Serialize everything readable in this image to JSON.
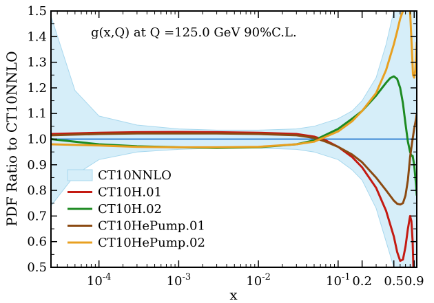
{
  "chart_data": {
    "type": "line",
    "annotation": "g(x,Q) at Q =125.0 GeV 90%C.L.",
    "xlabel": "x",
    "ylabel": "PDF Ratio to CT10NNLO",
    "x_scale": "log",
    "xlim": [
      2.5e-05,
      0.97
    ],
    "ylim": [
      0.5,
      1.5
    ],
    "y_ticks": [
      "0.5",
      "0.6",
      "0.7",
      "0.8",
      "0.9",
      "1.0",
      "1.1",
      "1.2",
      "1.3",
      "1.4",
      "1.5"
    ],
    "x_ticks": [
      {
        "value": 0.0001,
        "label": "10",
        "exp": "-4"
      },
      {
        "value": 0.001,
        "label": "10",
        "exp": "-3"
      },
      {
        "value": 0.01,
        "label": "10",
        "exp": "-2"
      },
      {
        "value": 0.1,
        "label": "10",
        "exp": "-1"
      },
      {
        "value": 0.2,
        "label": "0.2",
        "exp": ""
      },
      {
        "value": 0.5,
        "label": "0.5",
        "exp": ""
      },
      {
        "value": 0.9,
        "label": "0.9",
        "exp": ""
      }
    ],
    "grid": false,
    "legend_position": "bottom-left",
    "colors": {
      "band_fill": "#d6eef9",
      "band_edge": "#a8d8ee",
      "reference_line": "#3a86d4"
    },
    "band": {
      "name": "CT10NNLO",
      "x": [
        2.5e-05,
        5e-05,
        0.0001,
        0.0003,
        0.001,
        0.003,
        0.01,
        0.03,
        0.05,
        0.1,
        0.15,
        0.2,
        0.3,
        0.4,
        0.5,
        0.6,
        0.7,
        0.8,
        0.9,
        0.97
      ],
      "upper": [
        1.48,
        1.19,
        1.09,
        1.055,
        1.04,
        1.035,
        1.035,
        1.04,
        1.05,
        1.08,
        1.11,
        1.15,
        1.24,
        1.37,
        1.5,
        1.5,
        1.5,
        1.5,
        1.5,
        1.5
      ],
      "lower": [
        0.74,
        0.86,
        0.92,
        0.95,
        0.96,
        0.965,
        0.965,
        0.96,
        0.95,
        0.92,
        0.88,
        0.84,
        0.73,
        0.6,
        0.5,
        0.5,
        0.5,
        0.5,
        0.5,
        0.5
      ]
    },
    "reference": {
      "y": 1.0
    },
    "series": [
      {
        "name": "CT10H.01",
        "color": "#c41a12",
        "x": [
          2.5e-05,
          0.0001,
          0.0003,
          0.001,
          0.003,
          0.01,
          0.03,
          0.05,
          0.07,
          0.1,
          0.15,
          0.2,
          0.3,
          0.4,
          0.5,
          0.55,
          0.6,
          0.65,
          0.7,
          0.75,
          0.8,
          0.83,
          0.86,
          0.88
        ],
        "values": [
          1.02,
          1.025,
          1.027,
          1.028,
          1.027,
          1.025,
          1.02,
          1.01,
          0.995,
          0.97,
          0.93,
          0.89,
          0.81,
          0.72,
          0.62,
          0.56,
          0.525,
          0.53,
          0.58,
          0.65,
          0.7,
          0.68,
          0.6,
          0.5
        ]
      },
      {
        "name": "CT10H.02",
        "color": "#1d8a22",
        "x": [
          2.5e-05,
          0.0001,
          0.0003,
          0.001,
          0.003,
          0.01,
          0.03,
          0.05,
          0.1,
          0.15,
          0.2,
          0.3,
          0.4,
          0.45,
          0.5,
          0.55,
          0.6,
          0.65,
          0.7,
          0.75,
          0.8,
          0.83,
          0.86,
          0.9,
          0.95,
          0.97
        ],
        "values": [
          1.0,
          0.98,
          0.972,
          0.968,
          0.966,
          0.968,
          0.98,
          0.995,
          1.04,
          1.08,
          1.11,
          1.17,
          1.22,
          1.238,
          1.245,
          1.235,
          1.2,
          1.14,
          1.06,
          0.99,
          0.95,
          0.935,
          0.935,
          0.9,
          0.82,
          0.78
        ]
      },
      {
        "name": "CT10HePump.01",
        "color": "#8b4a12",
        "x": [
          2.5e-05,
          0.0001,
          0.0003,
          0.001,
          0.003,
          0.01,
          0.03,
          0.05,
          0.07,
          0.1,
          0.15,
          0.2,
          0.3,
          0.4,
          0.5,
          0.55,
          0.6,
          0.65,
          0.7,
          0.75,
          0.8,
          0.85,
          0.9,
          0.95,
          0.97
        ],
        "values": [
          1.015,
          1.02,
          1.022,
          1.022,
          1.022,
          1.02,
          1.015,
          1.005,
          0.99,
          0.97,
          0.94,
          0.91,
          0.85,
          0.8,
          0.76,
          0.748,
          0.745,
          0.75,
          0.78,
          0.84,
          0.93,
          0.99,
          1.04,
          1.08,
          1.1
        ]
      },
      {
        "name": "CT10HePump.02",
        "color": "#e8a020",
        "x": [
          2.5e-05,
          0.0001,
          0.0003,
          0.001,
          0.003,
          0.01,
          0.03,
          0.05,
          0.1,
          0.15,
          0.2,
          0.3,
          0.4,
          0.5,
          0.55,
          0.6,
          0.65,
          0.7,
          0.75,
          0.78,
          0.8,
          0.85,
          0.87,
          0.9,
          0.93,
          0.95,
          0.97
        ],
        "values": [
          0.98,
          0.975,
          0.97,
          0.968,
          0.968,
          0.97,
          0.98,
          0.99,
          1.03,
          1.07,
          1.11,
          1.18,
          1.27,
          1.37,
          1.42,
          1.47,
          1.5,
          null,
          null,
          1.5,
          1.5,
          1.32,
          1.25,
          1.24,
          1.27,
          1.32,
          1.38
        ]
      }
    ]
  }
}
